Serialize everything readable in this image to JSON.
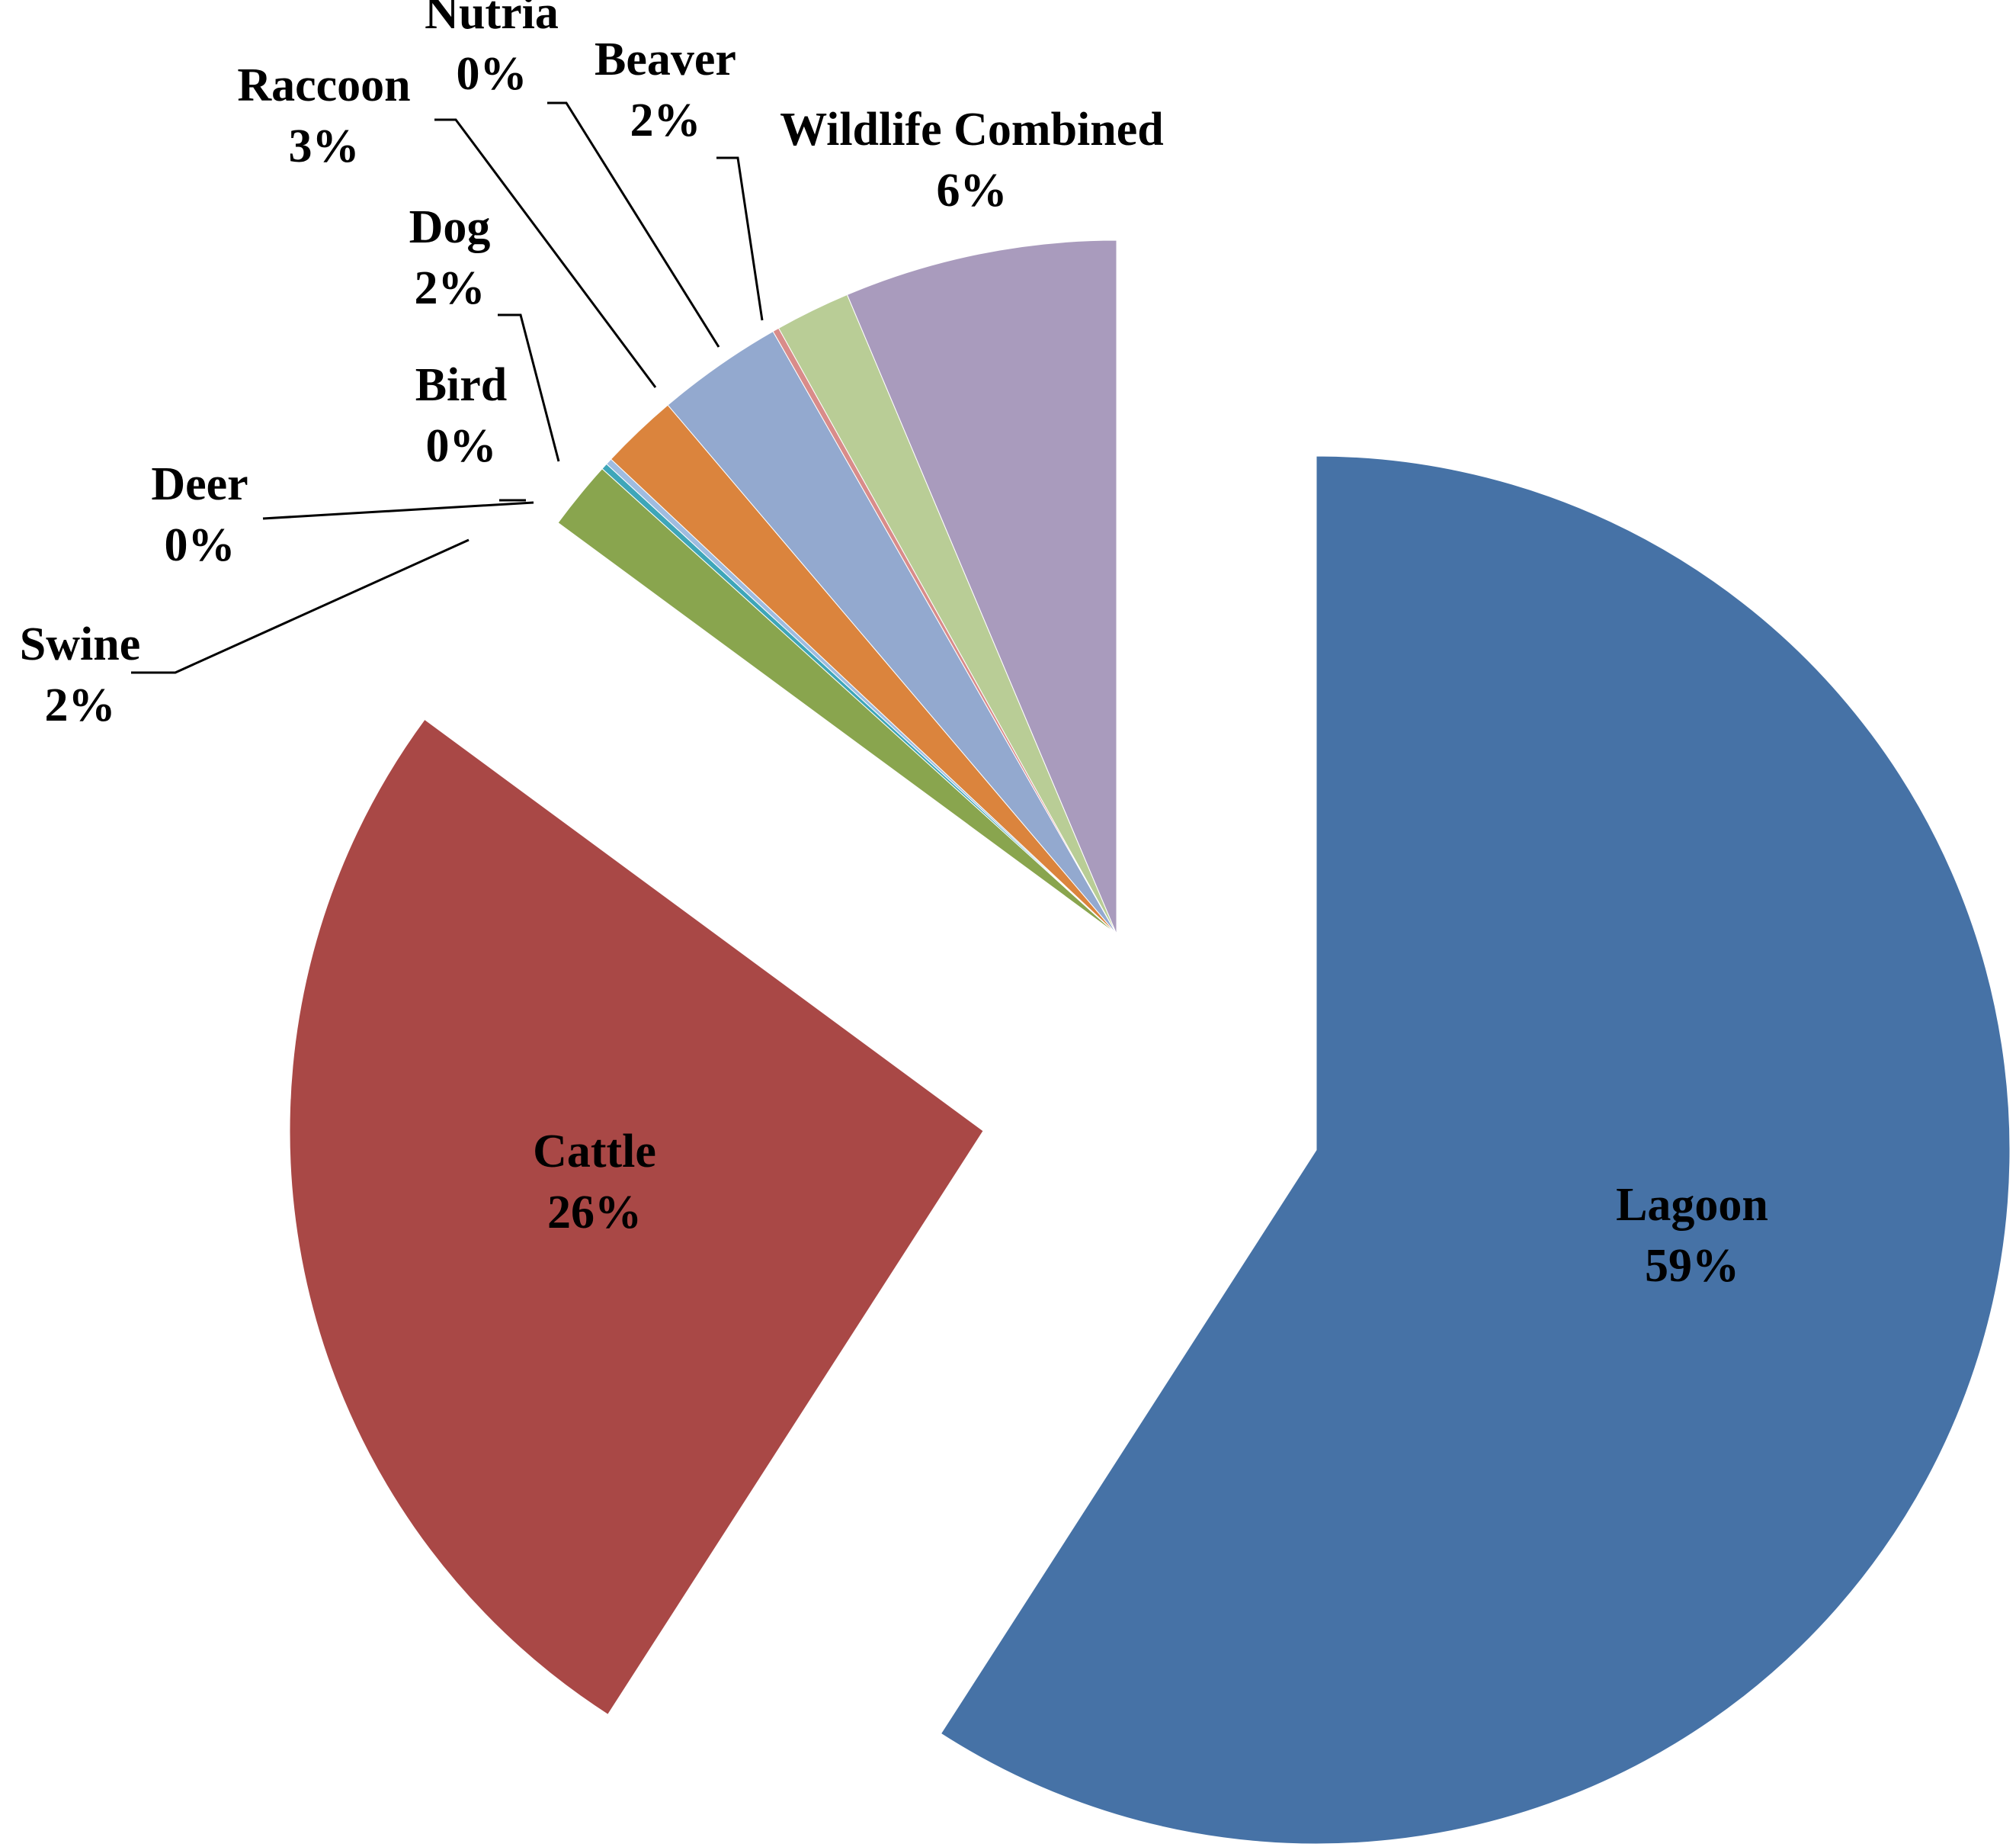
{
  "chart_data": {
    "type": "pie",
    "title": "",
    "slices": [
      {
        "name": "Lagoon",
        "pct_label": "59%",
        "value": 59.1,
        "color": "#4672a6",
        "outside": false
      },
      {
        "name": "Cattle",
        "pct_label": "26%",
        "value": 26.0,
        "color": "#a94846",
        "outside": false
      },
      {
        "name": "Swine",
        "pct_label": "2%",
        "value": 1.6,
        "color": "#89a54e",
        "outside": true
      },
      {
        "name": "Deer",
        "pct_label": "0%",
        "value": 0.15,
        "color": "#3ea6b9",
        "outside": true
      },
      {
        "name": "Bird",
        "pct_label": "0%",
        "value": 0.15,
        "color": "#9fbce0",
        "outside": true
      },
      {
        "name": "Dog",
        "pct_label": "2%",
        "value": 1.8,
        "color": "#db843d",
        "outside": true
      },
      {
        "name": "Raccoon",
        "pct_label": "3%",
        "value": 2.95,
        "color": "#93a9cf",
        "outside": true
      },
      {
        "name": "Nutria",
        "pct_label": "0%",
        "value": 0.15,
        "color": "#d98c8a",
        "outside": true
      },
      {
        "name": "Beaver",
        "pct_label": "2%",
        "value": 1.75,
        "color": "#b9cd96",
        "outside": true
      },
      {
        "name": "Wildlife Combined",
        "pct_label": "6%",
        "value": 6.35,
        "color": "#a99bbd",
        "outside": true
      }
    ]
  }
}
